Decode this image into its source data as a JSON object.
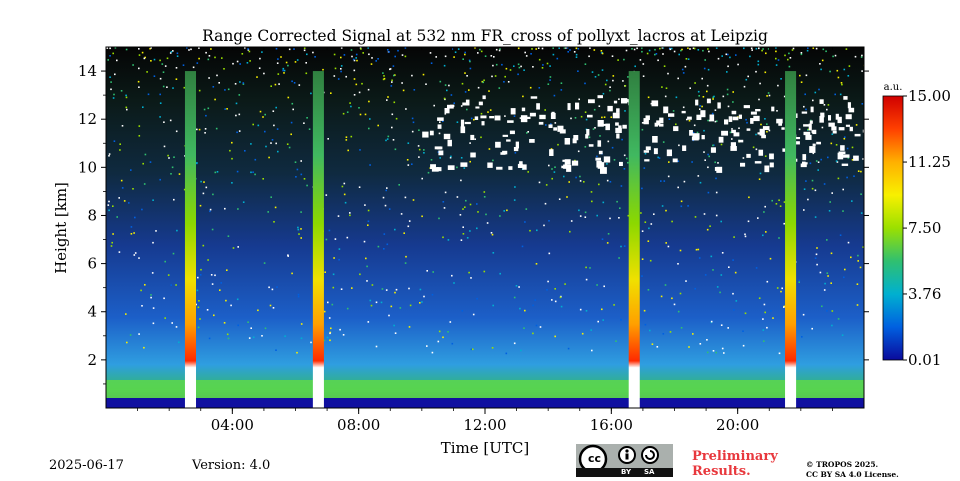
{
  "chart_data": {
    "type": "heatmap",
    "title": "Range Corrected Signal at 532 nm FR_cross of pollyxt_lacros at Leipzig",
    "xlabel": "Time [UTC]",
    "ylabel": "Height [km]",
    "xlim": [
      0,
      24
    ],
    "ylim": [
      0,
      15
    ],
    "x_ticks": [
      {
        "value": 4,
        "label": "04:00"
      },
      {
        "value": 8,
        "label": "08:00"
      },
      {
        "value": 12,
        "label": "12:00"
      },
      {
        "value": 16,
        "label": "16:00"
      },
      {
        "value": 20,
        "label": "20:00"
      }
    ],
    "y_ticks": [
      {
        "value": 2,
        "label": "2"
      },
      {
        "value": 4,
        "label": "4"
      },
      {
        "value": 6,
        "label": "6"
      },
      {
        "value": 8,
        "label": "8"
      },
      {
        "value": 10,
        "label": "10"
      },
      {
        "value": 12,
        "label": "12"
      },
      {
        "value": 14,
        "label": "14"
      }
    ],
    "colorbar": {
      "unit": "a.u.",
      "range": [
        0.01,
        15.0
      ],
      "ticks": [
        {
          "value": 0.01,
          "label": "0.01"
        },
        {
          "value": 3.76,
          "label": "3.76"
        },
        {
          "value": 7.5,
          "label": "7.50"
        },
        {
          "value": 11.25,
          "label": "11.25"
        },
        {
          "value": 15.0,
          "label": "15.00"
        }
      ],
      "colors": [
        "#0a0a9c",
        "#0060e0",
        "#00b0d0",
        "#30c070",
        "#9be000",
        "#f8f000",
        "#ffb000",
        "#ff4000",
        "#d00000"
      ]
    },
    "calibration_columns": [
      {
        "start": 2.5,
        "end": 2.85
      },
      {
        "start": 6.55,
        "end": 6.9
      },
      {
        "start": 16.55,
        "end": 16.9
      },
      {
        "start": 21.5,
        "end": 21.85
      }
    ],
    "cloud_layer_km": [
      10,
      13
    ],
    "boundary_layer_km": [
      0,
      3.5
    ]
  },
  "footer": {
    "date": "2025-06-17",
    "version": "Version: 4.0",
    "preliminary_line1": "Preliminary",
    "preliminary_line2": "Results.",
    "copyright_line1": "© TROPOS 2025.",
    "copyright_line2": "CC BY SA 4.0 License.",
    "license_badge": {
      "cc": "cc",
      "by": "BY",
      "sa": "SA"
    }
  }
}
